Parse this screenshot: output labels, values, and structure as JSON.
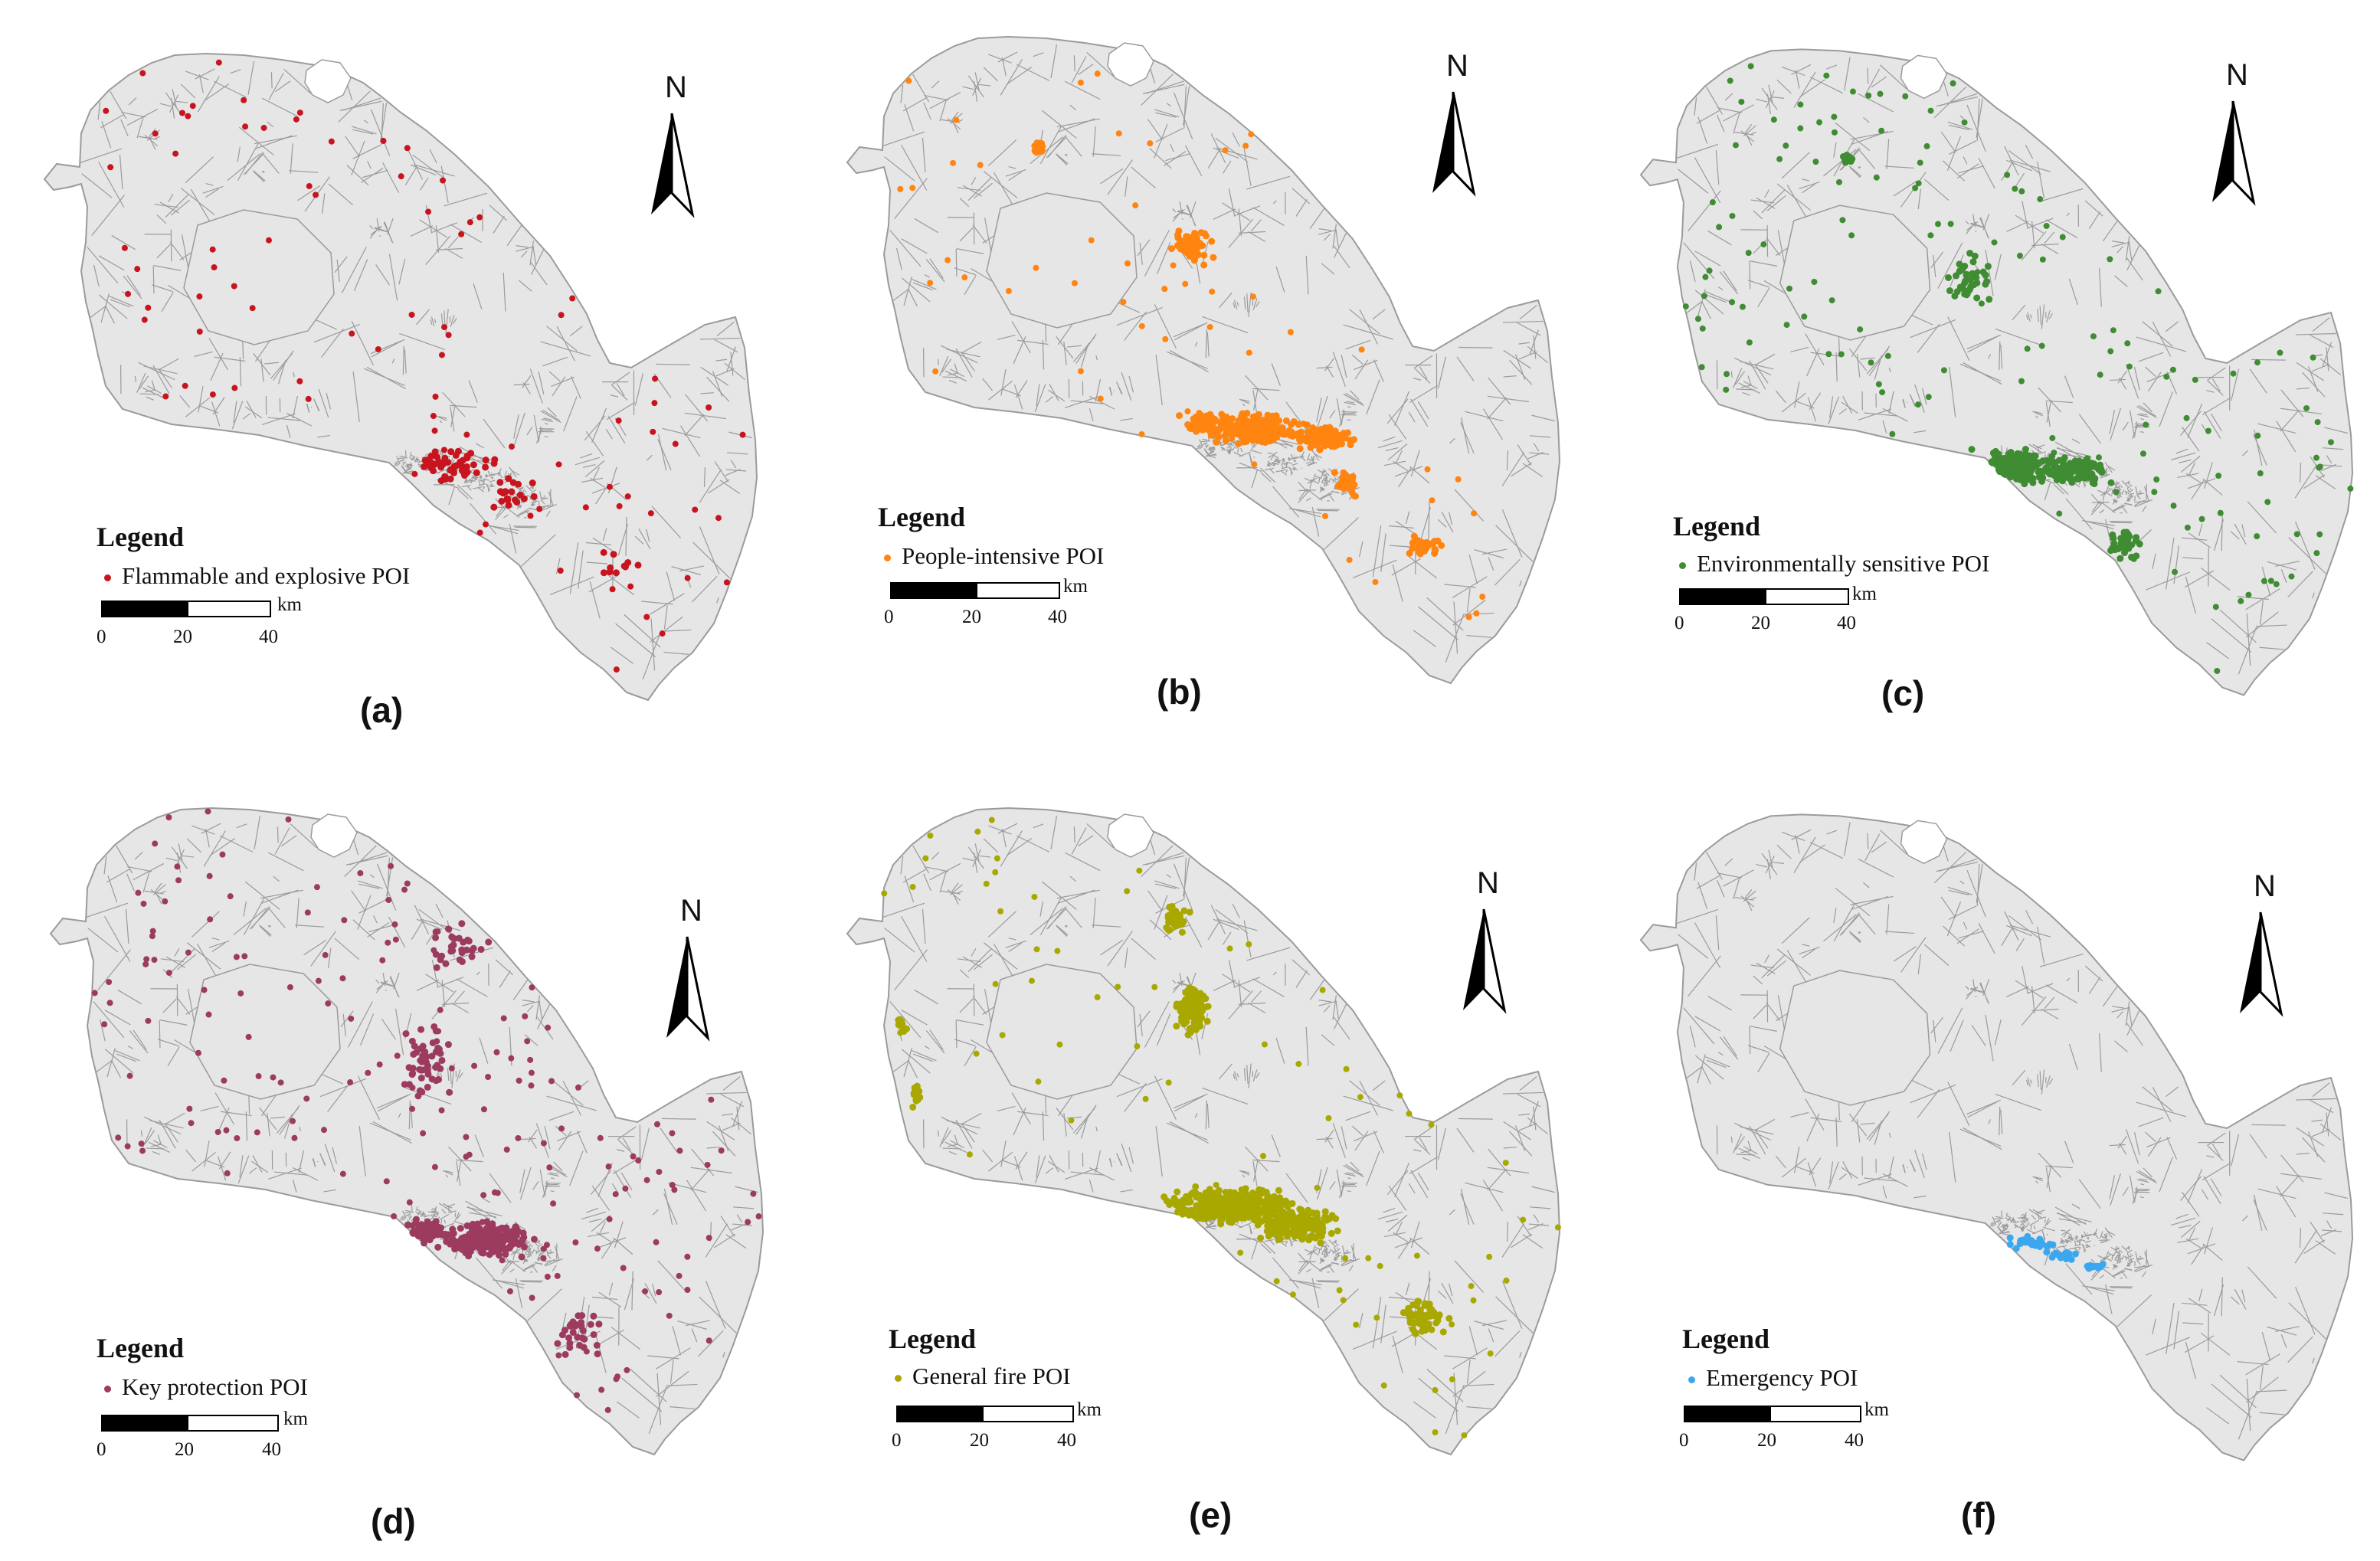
{
  "colors": {
    "land": "#e6e6e6",
    "boundary": "#9b9b9b",
    "scale_dark": "#000000",
    "scale_light": "#ffffff"
  },
  "north_label": "N",
  "legend_title": "Legend",
  "scale": {
    "unit": "km",
    "ticks": [
      "0",
      "20",
      "40"
    ]
  },
  "panels": [
    {
      "key": "a",
      "label": "(a)",
      "legend_label": "Flammable and explosive POI",
      "color": "#c8141e",
      "pattern": "flammable"
    },
    {
      "key": "b",
      "label": "(b)",
      "legend_label": "People-intensive POI",
      "color": "#ff8410",
      "pattern": "people"
    },
    {
      "key": "c",
      "label": "(c)",
      "legend_label": "Environmentally sensitive POI",
      "color": "#3f8c33",
      "pattern": "environment"
    },
    {
      "key": "d",
      "label": "(d)",
      "legend_label": "Key protection POI",
      "color": "#9c3b5f",
      "pattern": "protection"
    },
    {
      "key": "e",
      "label": "(e)",
      "legend_label": "General fire POI",
      "color": "#a9a800",
      "pattern": "fire"
    },
    {
      "key": "f",
      "label": "(f)",
      "legend_label": "Emergency POI",
      "color": "#3aa7ef",
      "pattern": "emergency"
    }
  ]
}
